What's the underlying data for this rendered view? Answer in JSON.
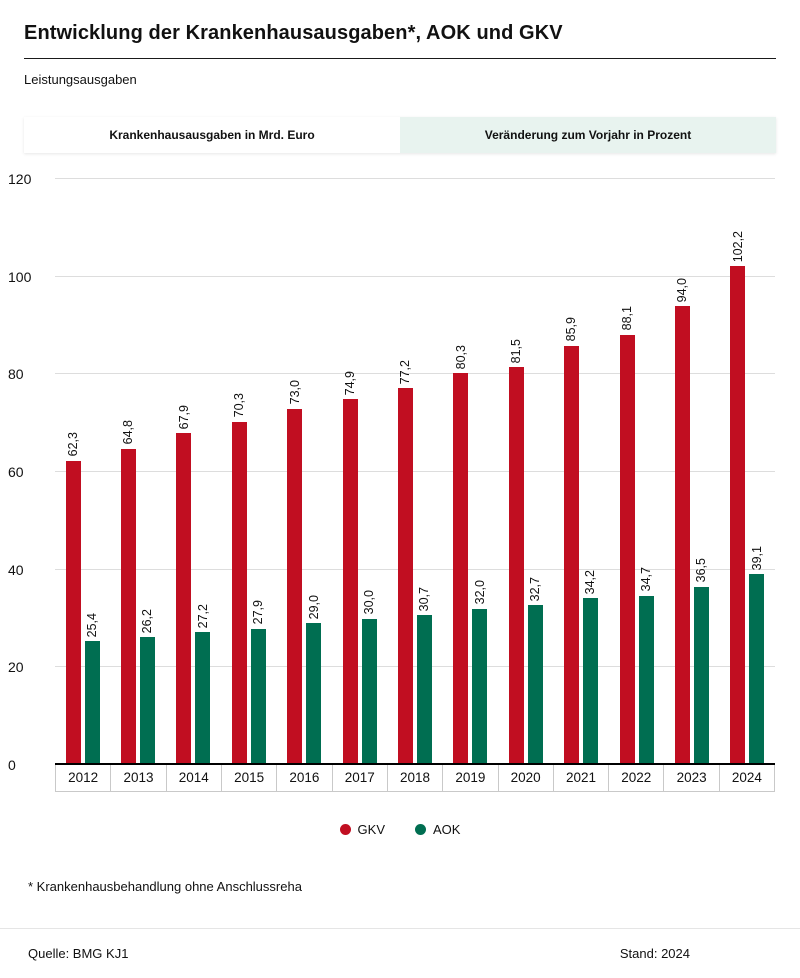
{
  "header": {
    "title": "Entwicklung der Krankenhausausgaben*, AOK und GKV",
    "subtitle": "Leistungsausgaben"
  },
  "tabs": [
    {
      "id": "absolute",
      "label": "Krankenhausausgaben in Mrd. Euro",
      "active": true
    },
    {
      "id": "percent",
      "label": "Veränderung zum Vorjahr in Prozent",
      "active": false
    }
  ],
  "chart_data": {
    "type": "bar",
    "title": "Entwicklung der Krankenhausausgaben, AOK und GKV",
    "categories": [
      "2012",
      "2013",
      "2014",
      "2015",
      "2016",
      "2017",
      "2018",
      "2019",
      "2020",
      "2021",
      "2022",
      "2023",
      "2024"
    ],
    "series": [
      {
        "name": "GKV",
        "color": "#c10e21",
        "values": [
          62.3,
          64.8,
          67.9,
          70.3,
          73.0,
          74.9,
          77.2,
          80.3,
          81.5,
          85.9,
          88.1,
          94.0,
          102.2
        ],
        "labels": [
          "62,3",
          "64,8",
          "67,9",
          "70,3",
          "73,0",
          "74,9",
          "77,2",
          "80,3",
          "81,5",
          "85,9",
          "88,1",
          "94,0",
          "102,2"
        ]
      },
      {
        "name": "AOK",
        "color": "#006e51",
        "values": [
          25.4,
          26.2,
          27.2,
          27.9,
          29.0,
          30.0,
          30.7,
          32.0,
          32.7,
          34.2,
          34.7,
          36.5,
          39.1
        ],
        "labels": [
          "25,4",
          "26,2",
          "27,2",
          "27,9",
          "29,0",
          "30,0",
          "30,7",
          "32,0",
          "32,7",
          "34,2",
          "34,7",
          "36,5",
          "39,1"
        ]
      }
    ],
    "xlabel": "",
    "ylabel": "",
    "ylim": [
      0,
      120
    ],
    "yticks": [
      0,
      20,
      40,
      60,
      80,
      100,
      120
    ],
    "grid": true,
    "legend_position": "bottom",
    "value_label_rotation": 90
  },
  "legend": [
    {
      "label": "GKV",
      "color": "#c10e21"
    },
    {
      "label": "AOK",
      "color": "#006e51"
    }
  ],
  "footnote": "* Krankenhausbehandlung ohne Anschlussreha",
  "footer": {
    "source": "Quelle: BMG  KJ1",
    "stand": "Stand: 2024"
  }
}
